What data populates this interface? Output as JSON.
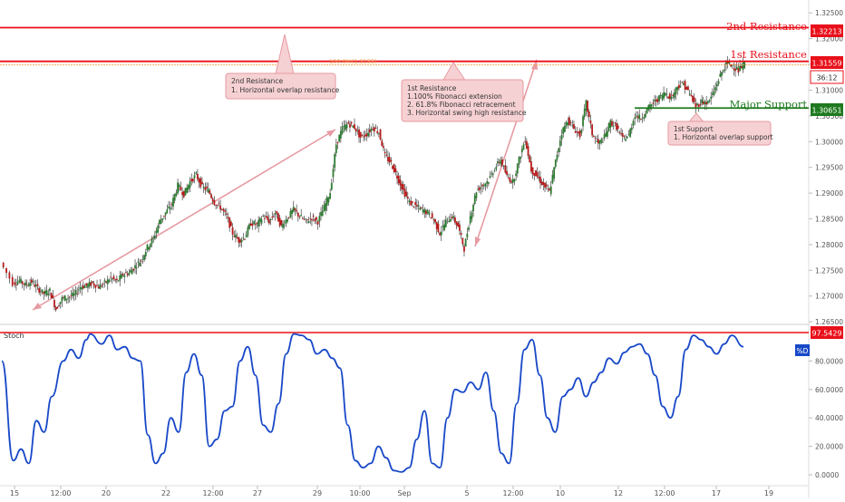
{
  "chart_data": [
    {
      "type": "candlestick",
      "title": "",
      "ylim": [
        1.2645,
        1.3275
      ],
      "y_ticks": [
        "1.32500",
        "1.32000",
        "1.31500",
        "1.31000",
        "1.30500",
        "1.30000",
        "1.29500",
        "1.29000",
        "1.28500",
        "1.28000",
        "1.27500",
        "1.27000",
        "1.26500"
      ],
      "x_ticks": [
        "15",
        "12:00",
        "20",
        "22",
        "12:00",
        "27",
        "29",
        "10:00",
        "Sep",
        "5",
        "12:00",
        "10",
        "12",
        "12:00",
        "17",
        "19"
      ],
      "price_path": [
        [
          0,
          1.2765
        ],
        [
          2,
          1.2725
        ],
        [
          3,
          1.273
        ],
        [
          4,
          1.2722
        ],
        [
          5,
          1.2728
        ],
        [
          6,
          1.2715
        ],
        [
          7,
          1.2705
        ],
        [
          8,
          1.271
        ],
        [
          9,
          1.2675
        ],
        [
          10,
          1.2695
        ],
        [
          11,
          1.2698
        ],
        [
          12,
          1.2702
        ],
        [
          13,
          1.2718
        ],
        [
          14,
          1.272
        ],
        [
          15,
          1.2725
        ],
        [
          16,
          1.2718
        ],
        [
          17,
          1.2725
        ],
        [
          18,
          1.2735
        ],
        [
          19,
          1.2728
        ],
        [
          20,
          1.2742
        ],
        [
          21,
          1.2745
        ],
        [
          22,
          1.2758
        ],
        [
          23,
          1.277
        ],
        [
          24,
          1.2795
        ],
        [
          25,
          1.2812
        ],
        [
          26,
          1.2845
        ],
        [
          27,
          1.2862
        ],
        [
          28,
          1.2878
        ],
        [
          29,
          1.2915
        ],
        [
          30,
          1.2898
        ],
        [
          31,
          1.2922
        ],
        [
          32,
          1.2935
        ],
        [
          33,
          1.2912
        ],
        [
          34,
          1.2905
        ],
        [
          35,
          1.2882
        ],
        [
          36,
          1.2872
        ],
        [
          37,
          1.2855
        ],
        [
          38,
          1.2822
        ],
        [
          39,
          1.2808
        ],
        [
          40,
          1.2815
        ],
        [
          41,
          1.2842
        ],
        [
          42,
          1.2838
        ],
        [
          43,
          1.2855
        ],
        [
          44,
          1.2845
        ],
        [
          45,
          1.2862
        ],
        [
          46,
          1.2835
        ],
        [
          47,
          1.2852
        ],
        [
          48,
          1.2868
        ],
        [
          49,
          1.2855
        ],
        [
          50,
          1.2845
        ],
        [
          51,
          1.2852
        ],
        [
          52,
          1.2845
        ],
        [
          53,
          1.2872
        ],
        [
          54,
          1.2902
        ],
        [
          55,
          1.2995
        ],
        [
          56,
          1.3025
        ],
        [
          57,
          1.3035
        ],
        [
          58,
          1.3028
        ],
        [
          59,
          1.3008
        ],
        [
          60,
          1.3015
        ],
        [
          61,
          1.3028
        ],
        [
          62,
          1.3018
        ],
        [
          63,
          1.2972
        ],
        [
          64,
          1.2958
        ],
        [
          65,
          1.2932
        ],
        [
          66,
          1.2905
        ],
        [
          67,
          1.2882
        ],
        [
          68,
          1.2875
        ],
        [
          69,
          1.2868
        ],
        [
          70,
          1.2862
        ],
        [
          71,
          1.2848
        ],
        [
          72,
          1.2822
        ],
        [
          73,
          1.2845
        ],
        [
          74,
          1.2855
        ],
        [
          75,
          1.2835
        ],
        [
          76,
          1.2792
        ],
        [
          77,
          1.2855
        ],
        [
          78,
          1.2905
        ],
        [
          79,
          1.2915
        ],
        [
          80,
          1.2925
        ],
        [
          81,
          1.2948
        ],
        [
          82,
          1.2965
        ],
        [
          83,
          1.2932
        ],
        [
          84,
          1.2922
        ],
        [
          85,
          1.2965
        ],
        [
          86,
          1.3005
        ],
        [
          87,
          1.2945
        ],
        [
          88,
          1.2932
        ],
        [
          89,
          1.2915
        ],
        [
          90,
          1.2902
        ],
        [
          91,
          1.2962
        ],
        [
          92,
          1.3018
        ],
        [
          93,
          1.3042
        ],
        [
          94,
          1.3025
        ],
        [
          95,
          1.3012
        ],
        [
          96,
          1.3075
        ],
        [
          97,
          1.3015
        ],
        [
          98,
          1.2995
        ],
        [
          99,
          1.3008
        ],
        [
          100,
          1.3038
        ],
        [
          101,
          1.3028
        ],
        [
          102,
          1.3005
        ],
        [
          103,
          1.3012
        ],
        [
          104,
          1.3052
        ],
        [
          105,
          1.3045
        ],
        [
          106,
          1.3062
        ],
        [
          107,
          1.3075
        ],
        [
          108,
          1.3085
        ],
        [
          109,
          1.3095
        ],
        [
          110,
          1.3085
        ],
        [
          111,
          1.3108
        ],
        [
          112,
          1.3112
        ],
        [
          113,
          1.3092
        ],
        [
          114,
          1.3068
        ],
        [
          115,
          1.3078
        ],
        [
          116,
          1.3075
        ],
        [
          117,
          1.3098
        ],
        [
          118,
          1.3128
        ],
        [
          119,
          1.3152
        ],
        [
          120,
          1.3148
        ],
        [
          121,
          1.3138
        ],
        [
          122,
          1.3152
        ]
      ],
      "levels": [
        {
          "label": "2nd Resistance",
          "value": "1.32213",
          "color": "#e8101a"
        },
        {
          "label": "1st Resistance",
          "value": "1.31559",
          "color": "#e8101a"
        },
        {
          "label": "Major Support",
          "value": "1.30651",
          "color": "#1f7a1f"
        }
      ],
      "countdown": "36:12",
      "fib_label": "100.0%(1.3155)",
      "annotations": [
        {
          "name": "annotation-2nd-resistance",
          "lines": [
            "2nd Resistance",
            "1. Horizontal overlap resistance"
          ]
        },
        {
          "name": "annotation-1st-resistance",
          "lines": [
            "1st Resistance",
            "1.100% Fibonacci extension",
            "2. 61.8% Fibonacci retracement",
            "3. Horizontal swing high resistance"
          ]
        },
        {
          "name": "annotation-1st-support",
          "lines": [
            "1st Support",
            "1. Horizontal overlap support"
          ]
        }
      ]
    },
    {
      "type": "line",
      "title": "Stoch",
      "ylim": [
        0,
        100
      ],
      "y_ticks": [
        "80.0000",
        "60.0000",
        "40.0000",
        "20.0000",
        "0.0000"
      ],
      "series": [
        {
          "name": "%D",
          "color": "#1848c8",
          "x": [
            0,
            3,
            5,
            7,
            9,
            11,
            13,
            16,
            18,
            20,
            22,
            23,
            26,
            28,
            30,
            32,
            34,
            36,
            38,
            40,
            42,
            44,
            46,
            48,
            50,
            52,
            54,
            56,
            58,
            60,
            62,
            64,
            66,
            68,
            70,
            72,
            74,
            76,
            78,
            80,
            82,
            84,
            86,
            88,
            90,
            92,
            94,
            96,
            98,
            100,
            102,
            104,
            106,
            108,
            110,
            112,
            114,
            116,
            118,
            120,
            122,
            124,
            126,
            128,
            130,
            132,
            134,
            136,
            138,
            140,
            142,
            144,
            146,
            148,
            150,
            152,
            154,
            156,
            158,
            160,
            162,
            164,
            166,
            168,
            170,
            172,
            174,
            176,
            178,
            180,
            182,
            184,
            186,
            188,
            190,
            193
          ],
          "values": [
            80,
            10,
            18,
            8,
            38,
            30,
            55,
            80,
            88,
            82,
            95,
            99,
            92,
            98,
            88,
            90,
            82,
            80,
            28,
            8,
            15,
            40,
            30,
            72,
            85,
            70,
            20,
            25,
            45,
            48,
            80,
            90,
            70,
            35,
            30,
            50,
            85,
            99,
            98,
            95,
            85,
            88,
            82,
            75,
            35,
            10,
            5,
            8,
            20,
            12,
            3,
            2,
            5,
            25,
            45,
            8,
            5,
            40,
            60,
            58,
            65,
            60,
            72,
            45,
            15,
            8,
            50,
            88,
            95,
            70,
            40,
            30,
            55,
            60,
            68,
            55,
            65,
            72,
            82,
            78,
            86,
            90,
            92,
            85,
            70,
            48,
            40,
            55,
            88,
            98,
            95,
            90,
            85,
            92,
            98,
            90
          ]
        }
      ],
      "last_value": "97.5429",
      "x_ticks": [
        "15",
        "12:00",
        "20",
        "22",
        "12:00",
        "27",
        "29",
        "10:00",
        "Sep",
        "5",
        "12:00",
        "10",
        "12",
        "12:00",
        "17",
        "19"
      ]
    }
  ]
}
